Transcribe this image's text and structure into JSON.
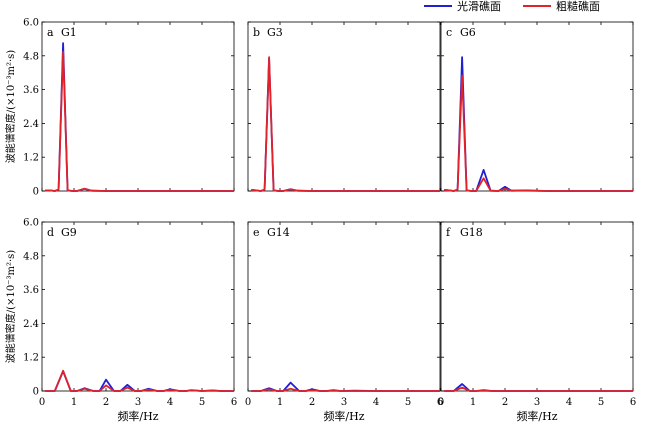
{
  "legend": {
    "smooth_label": "光滑礁面",
    "rough_label": "粗糙礁面"
  },
  "colors": {
    "smooth": "#1f1fd6",
    "rough": "#e0222a"
  },
  "axes": {
    "ylabel": "波能谱密度/(×10⁻³m²·s)",
    "xlabel": "频率/Hz",
    "xticks": [
      "0",
      "1",
      "2",
      "3",
      "4",
      "5",
      "6"
    ],
    "yticks": [
      "0",
      "1.2",
      "2.4",
      "3.6",
      "4.8",
      "6.0"
    ],
    "xlim": [
      0,
      6
    ],
    "ylim": [
      0,
      6
    ]
  },
  "chart_data": [
    {
      "type": "line",
      "panel": "a",
      "title": "G1",
      "series": [
        {
          "name": "光滑礁面",
          "color": "#1f1fd6",
          "x": [
            0.1,
            0.25,
            0.4,
            0.52,
            0.66,
            0.8,
            0.95,
            1.1,
            1.33,
            1.55,
            2.0,
            2.67,
            3.33,
            4.0,
            4.67,
            5.33,
            6.0
          ],
          "y": [
            0.02,
            0.02,
            0.0,
            0.05,
            5.25,
            0.02,
            0.0,
            0.0,
            0.08,
            0.01,
            0.0,
            0.0,
            0.0,
            0.0,
            0.0,
            0.0,
            0.0
          ]
        },
        {
          "name": "粗糙礁面",
          "color": "#e0222a",
          "x": [
            0.1,
            0.25,
            0.4,
            0.52,
            0.66,
            0.8,
            0.95,
            1.1,
            1.33,
            1.55,
            2.0,
            2.67,
            3.33,
            4.0,
            4.67,
            5.33,
            6.0
          ],
          "y": [
            0.02,
            0.02,
            0.0,
            0.05,
            4.95,
            0.02,
            0.0,
            0.0,
            0.08,
            0.01,
            0.0,
            0.0,
            0.0,
            0.0,
            0.0,
            0.0,
            0.0
          ]
        }
      ]
    },
    {
      "type": "line",
      "panel": "b",
      "title": "G3",
      "series": [
        {
          "name": "光滑礁面",
          "color": "#1f1fd6",
          "x": [
            0.1,
            0.25,
            0.4,
            0.52,
            0.66,
            0.8,
            0.95,
            1.1,
            1.33,
            1.55,
            2.0,
            2.67,
            3.33,
            4.0,
            4.67,
            5.33,
            6.0
          ],
          "y": [
            0.04,
            0.02,
            0.0,
            0.05,
            4.7,
            0.02,
            0.0,
            0.0,
            0.06,
            0.01,
            0.0,
            0.0,
            0.0,
            0.0,
            0.0,
            0.0,
            0.0
          ]
        },
        {
          "name": "粗糙礁面",
          "color": "#e0222a",
          "x": [
            0.1,
            0.25,
            0.4,
            0.52,
            0.66,
            0.8,
            0.95,
            1.1,
            1.33,
            1.55,
            2.0,
            2.67,
            3.33,
            4.0,
            4.67,
            5.33,
            6.0
          ],
          "y": [
            0.04,
            0.02,
            0.0,
            0.05,
            4.75,
            0.02,
            0.0,
            0.0,
            0.06,
            0.01,
            0.0,
            0.0,
            0.0,
            0.0,
            0.0,
            0.0,
            0.0
          ]
        }
      ]
    },
    {
      "type": "line",
      "panel": "c",
      "title": "G6",
      "series": [
        {
          "name": "光滑礁面",
          "color": "#1f1fd6",
          "x": [
            0.1,
            0.25,
            0.4,
            0.52,
            0.66,
            0.8,
            0.95,
            1.1,
            1.33,
            1.55,
            1.8,
            2.0,
            2.2,
            2.67,
            3.33,
            4.0,
            4.67,
            5.33,
            6.0
          ],
          "y": [
            0.04,
            0.02,
            0.0,
            0.05,
            4.75,
            0.02,
            0.0,
            0.0,
            0.75,
            0.01,
            0.0,
            0.15,
            0.01,
            0.02,
            0.0,
            0.0,
            0.0,
            0.0,
            0.0
          ]
        },
        {
          "name": "粗糙礁面",
          "color": "#e0222a",
          "x": [
            0.1,
            0.25,
            0.4,
            0.52,
            0.66,
            0.8,
            0.95,
            1.1,
            1.33,
            1.55,
            1.8,
            2.0,
            2.2,
            2.67,
            3.33,
            4.0,
            4.67,
            5.33,
            6.0
          ],
          "y": [
            0.04,
            0.02,
            0.0,
            0.05,
            4.1,
            0.02,
            0.0,
            0.0,
            0.45,
            0.01,
            0.0,
            0.08,
            0.01,
            0.01,
            0.0,
            0.0,
            0.0,
            0.0,
            0.0
          ]
        }
      ]
    },
    {
      "type": "line",
      "panel": "d",
      "title": "G9",
      "series": [
        {
          "name": "光滑礁面",
          "color": "#1f1fd6",
          "x": [
            0.1,
            0.4,
            0.66,
            0.9,
            1.1,
            1.33,
            1.6,
            1.8,
            2.0,
            2.25,
            2.45,
            2.67,
            2.9,
            3.1,
            3.33,
            3.6,
            3.8,
            4.0,
            4.3,
            4.5,
            4.67,
            5.0,
            5.33,
            5.6,
            6.0
          ],
          "y": [
            0.0,
            0.0,
            0.7,
            0.0,
            0.0,
            0.1,
            0.0,
            0.0,
            0.4,
            0.0,
            0.0,
            0.22,
            0.0,
            0.0,
            0.08,
            0.0,
            0.0,
            0.06,
            0.0,
            0.0,
            0.03,
            0.0,
            0.02,
            0.0,
            0.0
          ]
        },
        {
          "name": "粗糙礁面",
          "color": "#e0222a",
          "x": [
            0.1,
            0.4,
            0.66,
            0.9,
            1.1,
            1.33,
            1.6,
            1.8,
            2.0,
            2.25,
            2.45,
            2.67,
            2.9,
            3.1,
            3.33,
            3.6,
            3.8,
            4.0,
            4.3,
            4.5,
            4.67,
            5.0,
            5.33,
            5.6,
            6.0
          ],
          "y": [
            0.0,
            0.0,
            0.72,
            0.0,
            0.0,
            0.08,
            0.0,
            0.0,
            0.2,
            0.0,
            0.0,
            0.12,
            0.0,
            0.0,
            0.05,
            0.0,
            0.0,
            0.04,
            0.0,
            0.0,
            0.02,
            0.0,
            0.01,
            0.0,
            0.0
          ]
        }
      ]
    },
    {
      "type": "line",
      "panel": "e",
      "title": "G14",
      "series": [
        {
          "name": "光滑礁面",
          "color": "#1f1fd6",
          "x": [
            0.1,
            0.4,
            0.66,
            0.9,
            1.1,
            1.33,
            1.6,
            1.8,
            2.0,
            2.25,
            2.45,
            2.67,
            2.9,
            3.33,
            4.0,
            4.67,
            5.33,
            6.0
          ],
          "y": [
            0.0,
            0.0,
            0.1,
            0.0,
            0.0,
            0.3,
            0.0,
            0.0,
            0.06,
            0.0,
            0.0,
            0.03,
            0.0,
            0.01,
            0.0,
            0.0,
            0.0,
            0.0
          ]
        },
        {
          "name": "粗糙礁面",
          "color": "#e0222a",
          "x": [
            0.1,
            0.4,
            0.66,
            0.9,
            1.1,
            1.33,
            1.6,
            1.8,
            2.0,
            2.25,
            2.45,
            2.67,
            2.9,
            3.33,
            4.0,
            4.67,
            5.33,
            6.0
          ],
          "y": [
            0.0,
            0.0,
            0.06,
            0.0,
            0.0,
            0.08,
            0.0,
            0.0,
            0.02,
            0.0,
            0.0,
            0.01,
            0.0,
            0.0,
            0.0,
            0.0,
            0.0,
            0.0
          ]
        }
      ]
    },
    {
      "type": "line",
      "panel": "f",
      "title": "G18",
      "series": [
        {
          "name": "光滑礁面",
          "color": "#1f1fd6",
          "x": [
            0.1,
            0.4,
            0.66,
            0.9,
            1.1,
            1.33,
            1.6,
            2.0,
            2.67,
            3.33,
            4.0,
            4.67,
            5.33,
            6.0
          ],
          "y": [
            0.0,
            0.0,
            0.25,
            0.0,
            0.0,
            0.03,
            0.0,
            0.0,
            0.0,
            0.0,
            0.0,
            0.0,
            0.0,
            0.0
          ]
        },
        {
          "name": "粗糙礁面",
          "color": "#e0222a",
          "x": [
            0.1,
            0.4,
            0.66,
            0.9,
            1.1,
            1.33,
            1.6,
            2.0,
            2.67,
            3.33,
            4.0,
            4.67,
            5.33,
            6.0
          ],
          "y": [
            0.0,
            0.0,
            0.12,
            0.0,
            0.0,
            0.01,
            0.0,
            0.0,
            0.0,
            0.0,
            0.0,
            0.0,
            0.0,
            0.0
          ]
        }
      ]
    }
  ]
}
